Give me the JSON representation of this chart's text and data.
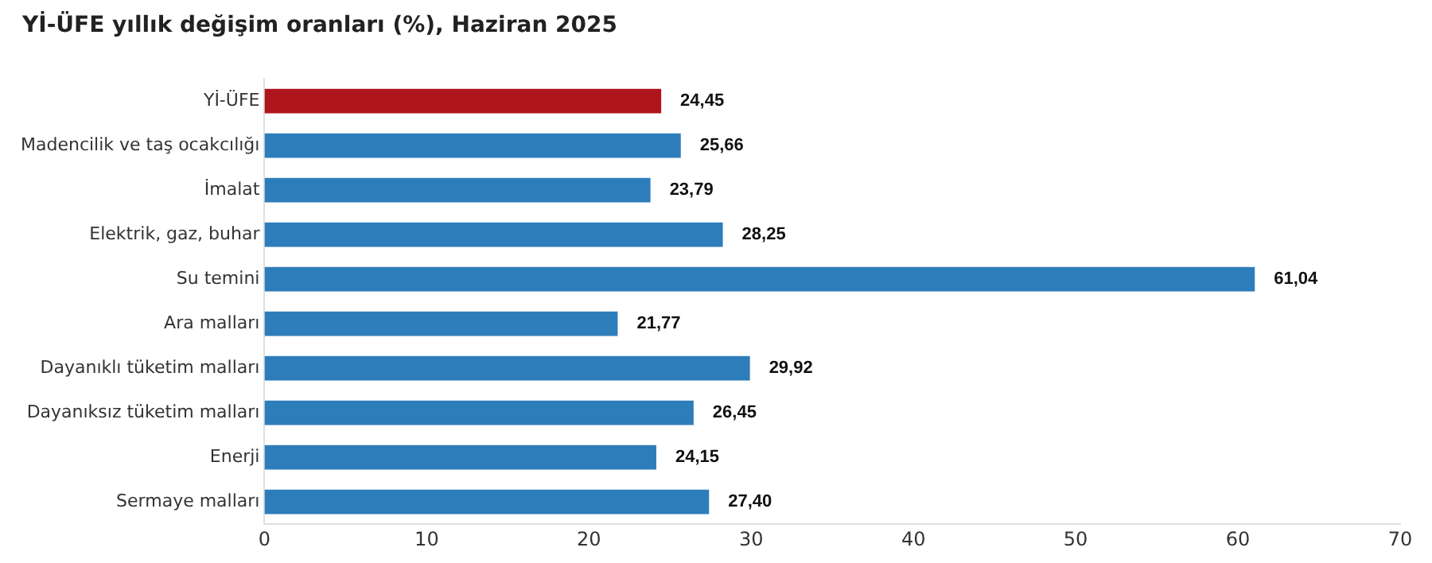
{
  "chart_data": {
    "type": "bar",
    "orientation": "horizontal",
    "title": "Yİ-ÜFE yıllık değişim oranları (%), Haziran 2025",
    "categories": [
      "Yİ-ÜFE",
      "Madencilik ve taş ocakcılığı",
      "İmalat",
      "Elektrik, gaz, buhar",
      "Su temini",
      "Ara malları",
      "Dayanıklı tüketim malları",
      "Dayanıksız tüketim malları",
      "Enerji",
      "Sermaye malları"
    ],
    "values": [
      24.45,
      25.66,
      23.79,
      28.25,
      61.04,
      21.77,
      29.92,
      26.45,
      24.15,
      27.4
    ],
    "value_labels": [
      "24,45",
      "25,66",
      "23,79",
      "28,25",
      "61,04",
      "21,77",
      "29,92",
      "26,45",
      "24,15",
      "27,40"
    ],
    "colors": [
      "#b0141c",
      "#2e7dbb",
      "#2e7dbb",
      "#2e7dbb",
      "#2e7dbb",
      "#2e7dbb",
      "#2e7dbb",
      "#2e7dbb",
      "#2e7dbb",
      "#2e7dbb"
    ],
    "xlim": [
      0,
      70
    ],
    "xticks": [
      0,
      10,
      20,
      30,
      40,
      50,
      60,
      70
    ],
    "grid": false,
    "legend": false
  }
}
